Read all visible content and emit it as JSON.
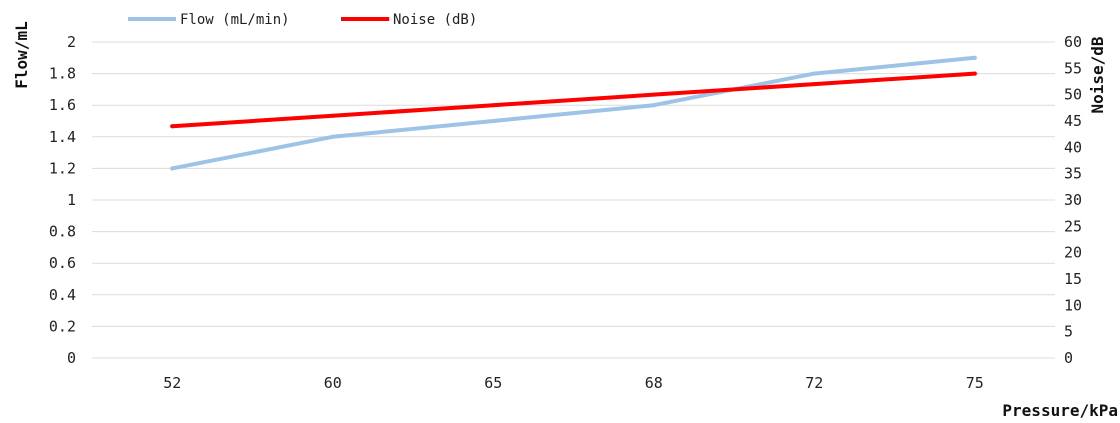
{
  "chart_data": {
    "type": "line",
    "title": "",
    "x": [
      "52",
      "60",
      "65",
      "68",
      "72",
      "75"
    ],
    "xlabel": "Pressure/kPa",
    "ylabel": "Flow/mL",
    "y2label": "Noise/dB",
    "ylim": [
      0,
      2
    ],
    "y2lim": [
      0,
      60
    ],
    "yticks": [
      "0",
      "0.2",
      "0.4",
      "0.6",
      "0.8",
      "1",
      "1.2",
      "1.4",
      "1.6",
      "1.8",
      "2"
    ],
    "y2ticks": [
      "0",
      "5",
      "10",
      "15",
      "20",
      "25",
      "30",
      "35",
      "40",
      "45",
      "50",
      "55",
      "60"
    ],
    "grid": true,
    "legend_position": "top-left",
    "series": [
      {
        "name": "Flow (mL/min)",
        "axis": "left",
        "color": "#9dc3e6",
        "values": [
          1.2,
          1.4,
          1.5,
          1.6,
          1.8,
          1.9
        ]
      },
      {
        "name": "Noise (dB)",
        "axis": "right",
        "color": "#ff0000",
        "values": [
          44,
          46,
          48,
          50,
          52,
          54
        ]
      }
    ]
  }
}
